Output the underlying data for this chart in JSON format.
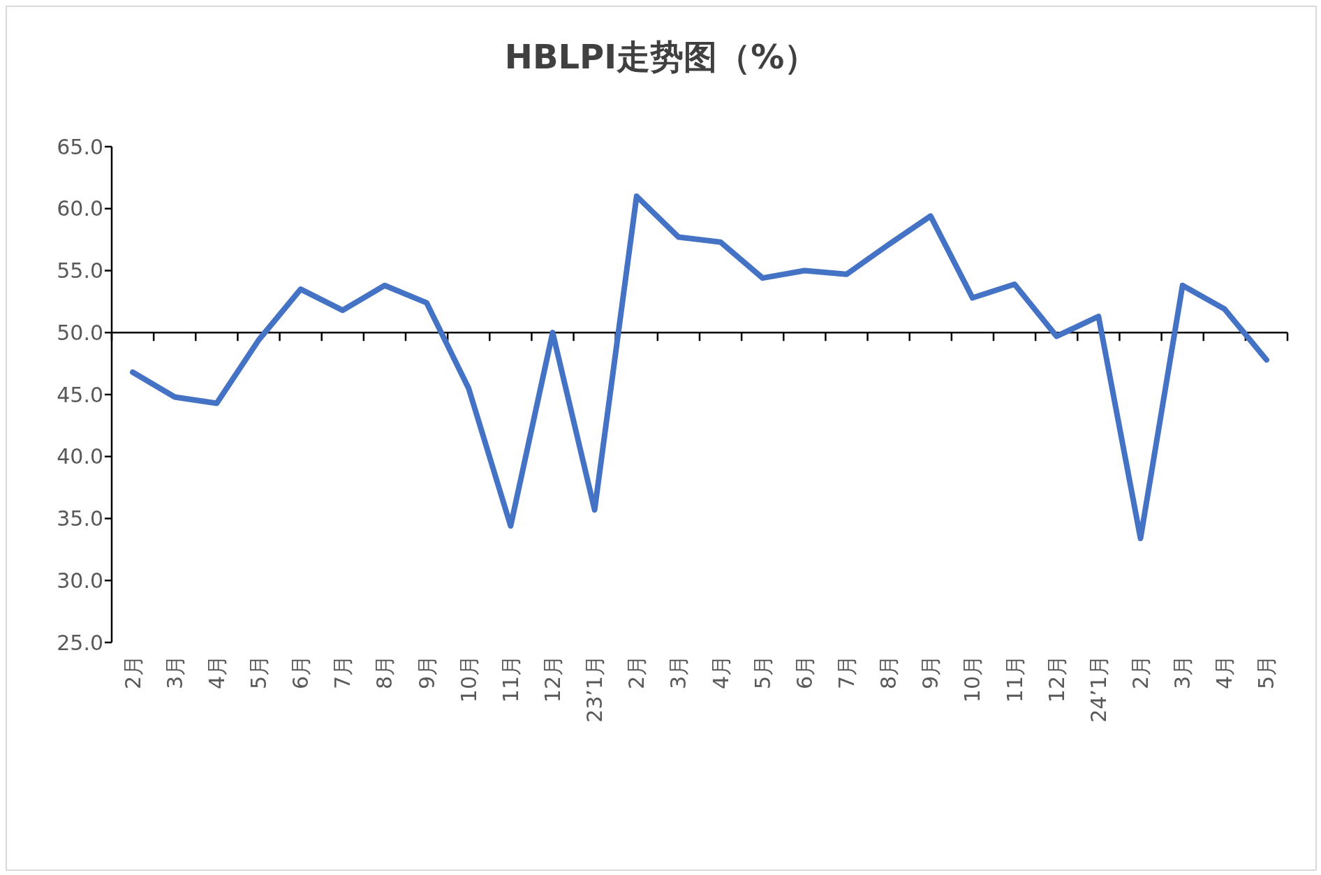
{
  "chart_data": {
    "type": "line",
    "title": "HBLPI走势图（%）",
    "categories": [
      "2月",
      "3月",
      "4月",
      "5月",
      "6月",
      "7月",
      "8月",
      "9月",
      "10月",
      "11月",
      "12月",
      "23’1月",
      "2月",
      "3月",
      "4月",
      "5月",
      "6月",
      "7月",
      "8月",
      "9月",
      "10月",
      "11月",
      "12月",
      "24’1月",
      "2月",
      "3月",
      "4月",
      "5月"
    ],
    "series": [
      {
        "color": "#4472c4",
        "values": [
          46.8,
          44.8,
          44.3,
          49.4,
          53.5,
          51.8,
          53.8,
          52.4,
          45.5,
          34.4,
          50.0,
          35.7,
          61.0,
          57.7,
          57.3,
          54.4,
          55.0,
          54.7,
          57.1,
          59.4,
          52.8,
          53.9,
          49.7,
          51.3,
          33.4,
          53.8,
          51.9,
          47.8
        ]
      }
    ],
    "ylim": [
      25,
      65
    ],
    "yticks": [
      {
        "value": 25,
        "label": "25.0"
      },
      {
        "value": 30,
        "label": "30.0"
      },
      {
        "value": 35,
        "label": "35.0"
      },
      {
        "value": 40,
        "label": "40.0"
      },
      {
        "value": 45,
        "label": "45.0"
      },
      {
        "value": 50,
        "label": "50.0"
      },
      {
        "value": 55,
        "label": "55.0"
      },
      {
        "value": 60,
        "label": "60.0"
      },
      {
        "value": 65,
        "label": "65.0"
      }
    ],
    "ref_lines": [
      {
        "axis": "y",
        "value": 50,
        "color": "#000000"
      }
    ],
    "marker": "none",
    "line_style": "solid"
  }
}
